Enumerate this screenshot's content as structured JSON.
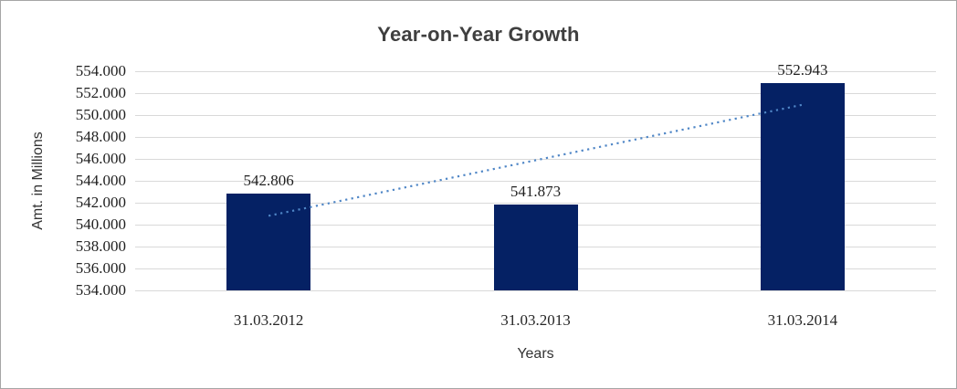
{
  "frame": {
    "background_color": "#ffffff",
    "border_color": "#a6a6a6"
  },
  "chart_data": {
    "type": "bar",
    "title": "Year-on-Year Growth",
    "categories": [
      "31.03.2012",
      "31.03.2013",
      "31.03.2014"
    ],
    "values": [
      542.806,
      541.873,
      552.943
    ],
    "data_labels": [
      "542.806",
      "541.873",
      "552.943"
    ],
    "xlabel": "Years",
    "ylabel": "Amt. in Millions",
    "ylim": [
      534,
      554
    ],
    "ytick_step": 2,
    "ytick_labels": [
      "554.000",
      "552.000",
      "550.000",
      "548.000",
      "546.000",
      "544.000",
      "542.000",
      "540.000",
      "538.000",
      "536.000",
      "534.000"
    ],
    "grid": true,
    "legend": "none",
    "colors": {
      "bar": "#052164",
      "trendline": "#4f86c6",
      "gridline": "#d9d9d9",
      "title": "#3f3f3f",
      "tick_label": "#1f1f1f"
    },
    "trendline": {
      "type": "linear",
      "style": "dotted"
    }
  }
}
